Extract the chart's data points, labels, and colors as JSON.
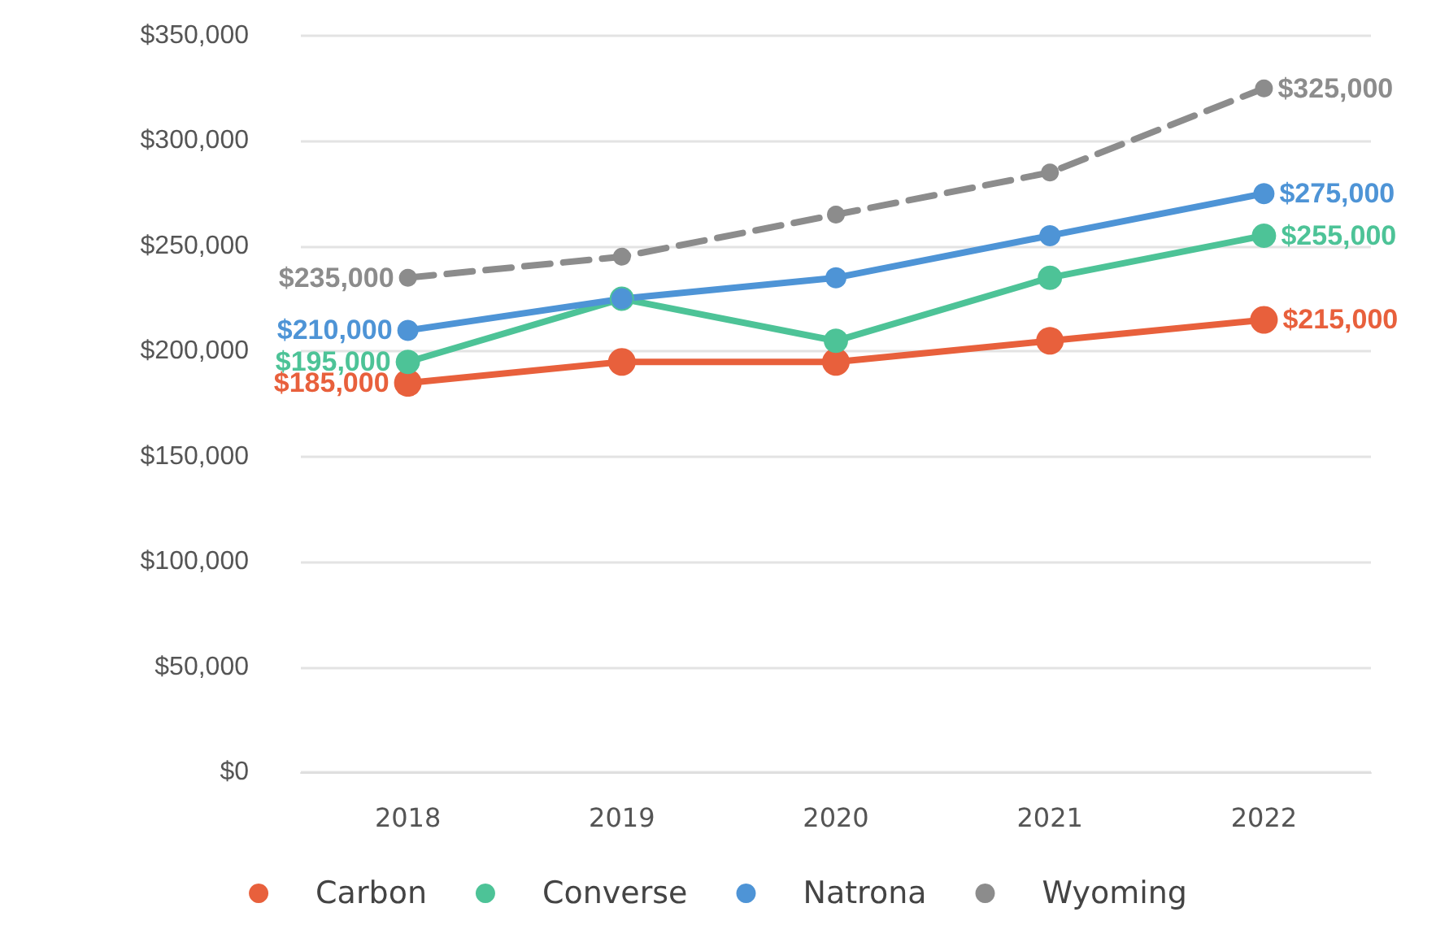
{
  "chart_data": {
    "type": "line",
    "categories": [
      "2018",
      "2019",
      "2020",
      "2021",
      "2022"
    ],
    "series": [
      {
        "name": "Carbon",
        "color": "#e8603c",
        "values": [
          185000,
          195000,
          195000,
          205000,
          215000
        ],
        "value_labels": [
          "$185,000",
          null,
          null,
          null,
          "$215,000"
        ]
      },
      {
        "name": "Converse",
        "color": "#4dc397",
        "values": [
          195000,
          225000,
          205000,
          235000,
          255000
        ],
        "value_labels": [
          "$195,000",
          null,
          null,
          null,
          "$255,000"
        ]
      },
      {
        "name": "Natrona",
        "color": "#4e94d6",
        "values": [
          210000,
          225000,
          235000,
          255000,
          275000
        ],
        "value_labels": [
          "$210,000",
          null,
          null,
          null,
          "$275,000"
        ]
      },
      {
        "name": "Wyoming",
        "color": "#8c8c8c",
        "line_style": "dashed",
        "values": [
          235000,
          245000,
          265000,
          285000,
          325000
        ],
        "value_labels": [
          "$235,000",
          null,
          null,
          null,
          "$325,000"
        ]
      }
    ],
    "ylim": [
      0,
      350000
    ],
    "yticks": [
      {
        "value": 0,
        "label": "$0"
      },
      {
        "value": 50000,
        "label": "$50,000"
      },
      {
        "value": 100000,
        "label": "$100,000"
      },
      {
        "value": 150000,
        "label": "$150,000"
      },
      {
        "value": 200000,
        "label": "$200,000"
      },
      {
        "value": 250000,
        "label": "$250,000"
      },
      {
        "value": 300000,
        "label": "$300,000"
      },
      {
        "value": 350000,
        "label": "$350,000"
      }
    ],
    "grid": "y",
    "legend": "bottom",
    "marker": "circle",
    "line_style": "solid"
  }
}
